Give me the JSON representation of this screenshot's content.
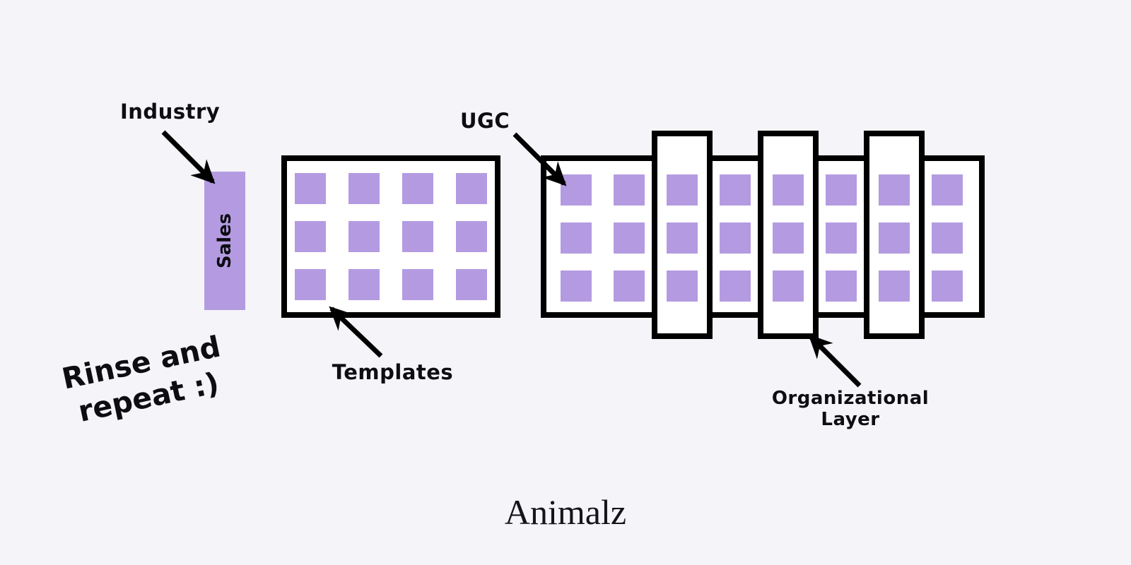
{
  "colors": {
    "background": "#f4f4f9",
    "purple": "#b49be1",
    "outline": "#000000",
    "text": "#0d0d12"
  },
  "labels": {
    "industry": "Industry",
    "sales": "Sales",
    "templates": "Templates",
    "ugc": "UGC",
    "organizational_layer": "Organizational Layer",
    "rinse_line1": "Rinse and",
    "rinse_line2": "repeat :)",
    "brand": "Animalz"
  },
  "diagram": {
    "templates_grid": {
      "columns": 4,
      "rows": 3
    },
    "ugc_grid": {
      "columns": 8,
      "rows": 3
    },
    "organizational_layers": {
      "count": 3,
      "at_grid_columns": [
        3,
        5,
        7
      ]
    }
  }
}
